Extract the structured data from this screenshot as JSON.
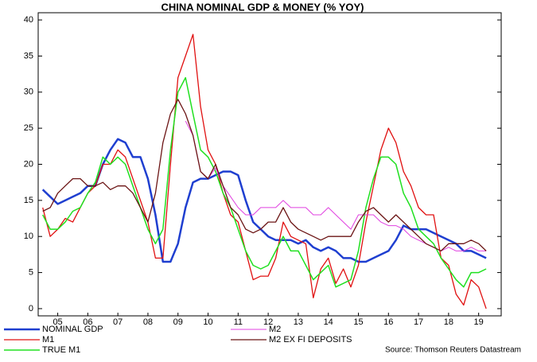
{
  "chart_data": {
    "type": "line",
    "title": "CHINA NOMINAL GDP & MONEY (% YOY)",
    "source": "Source: Thomson Reuters Datastream",
    "x": [
      2005,
      2005.25,
      2005.5,
      2005.75,
      2006,
      2006.25,
      2006.5,
      2006.75,
      2007,
      2007.25,
      2007.5,
      2007.75,
      2008,
      2008.25,
      2008.5,
      2008.75,
      2009,
      2009.25,
      2009.5,
      2009.75,
      2010,
      2010.25,
      2010.5,
      2010.75,
      2011,
      2011.25,
      2011.5,
      2011.75,
      2012,
      2012.25,
      2012.5,
      2012.75,
      2013,
      2013.25,
      2013.5,
      2013.75,
      2014,
      2014.25,
      2014.5,
      2014.75,
      2015,
      2015.25,
      2015.5,
      2015.75,
      2016,
      2016.25,
      2016.5,
      2016.75,
      2017,
      2017.25,
      2017.5,
      2017.75,
      2018,
      2018.25,
      2018.5,
      2018.75,
      2019,
      2019.25,
      2019.5,
      2019.75
    ],
    "xlim": [
      2004.85,
      2020.25
    ],
    "xticks": [
      {
        "value": 2005.5,
        "label": "05"
      },
      {
        "value": 2006.5,
        "label": "06"
      },
      {
        "value": 2007.5,
        "label": "07"
      },
      {
        "value": 2008.5,
        "label": "08"
      },
      {
        "value": 2009.5,
        "label": "09"
      },
      {
        "value": 2010.5,
        "label": "10"
      },
      {
        "value": 2011.5,
        "label": "11"
      },
      {
        "value": 2012.5,
        "label": "12"
      },
      {
        "value": 2013.5,
        "label": "13"
      },
      {
        "value": 2014.5,
        "label": "14"
      },
      {
        "value": 2015.5,
        "label": "15"
      },
      {
        "value": 2016.5,
        "label": "16"
      },
      {
        "value": 2017.5,
        "label": "17"
      },
      {
        "value": 2018.5,
        "label": "18"
      },
      {
        "value": 2019.5,
        "label": "19"
      }
    ],
    "ylim": [
      -1,
      41
    ],
    "yticks": [
      0,
      5,
      10,
      15,
      20,
      25,
      30,
      35,
      40
    ],
    "series": [
      {
        "name": "NOMINAL GDP",
        "color": "#1f3fd0",
        "width": 2.5,
        "values": [
          16.5,
          15.5,
          14.5,
          15,
          15.5,
          16,
          17,
          17,
          20,
          22,
          23.5,
          23,
          21,
          21,
          18,
          13,
          6.5,
          6.5,
          9,
          14,
          17.5,
          18,
          18,
          18.5,
          19,
          19,
          18.5,
          15,
          12,
          11,
          10,
          9.5,
          9.5,
          9.5,
          9,
          9.5,
          8.5,
          8,
          8.5,
          8,
          7,
          7,
          6.5,
          6.5,
          7,
          7.5,
          8,
          9.5,
          11.5,
          11,
          11,
          11,
          10.5,
          10,
          9.5,
          9,
          8,
          8,
          7.5,
          7
        ]
      },
      {
        "name": "M1",
        "color": "#e01010",
        "width": 1.3,
        "values": [
          14,
          10,
          11,
          12.5,
          12,
          14,
          16,
          17,
          20,
          20,
          22,
          21,
          18,
          15,
          12,
          7,
          7,
          20,
          32,
          35,
          38,
          28,
          22,
          20,
          16,
          13,
          12,
          8,
          4,
          4.5,
          4.5,
          7,
          12,
          10,
          9.5,
          9,
          1.5,
          5.5,
          7,
          3.5,
          5.5,
          3,
          6,
          12,
          17,
          22,
          25,
          23,
          19,
          17,
          14,
          13,
          13,
          7,
          6,
          2,
          0.5,
          4,
          3,
          0
        ]
      },
      {
        "name": "TRUE M1",
        "color": "#20e020",
        "width": 1.5,
        "values": [
          13,
          11,
          11,
          12,
          13.5,
          14,
          16,
          17.5,
          21,
          20,
          21,
          20,
          17,
          14,
          11,
          9,
          11,
          22,
          30,
          32,
          27,
          22,
          21,
          19,
          16,
          14,
          11,
          8,
          6,
          5.5,
          6,
          8,
          10,
          8,
          8,
          6,
          4,
          5,
          6,
          3,
          3.5,
          4,
          8,
          14,
          18,
          21,
          21,
          20,
          16,
          14,
          11,
          10,
          9,
          7,
          5.5,
          4,
          3,
          5,
          5,
          5.5
        ]
      },
      {
        "name": "M2",
        "color": "#e040e0",
        "width": 1,
        "values": [
          null,
          null,
          null,
          null,
          null,
          null,
          null,
          null,
          null,
          null,
          null,
          null,
          null,
          null,
          null,
          null,
          null,
          null,
          null,
          26,
          24,
          19,
          18,
          19.5,
          17,
          15.5,
          14,
          13,
          13,
          14,
          14,
          14,
          15,
          14,
          14,
          14,
          13,
          13,
          14,
          13,
          12,
          11,
          13,
          13,
          13,
          12,
          11.5,
          11.5,
          11,
          10,
          9.5,
          9,
          8.5,
          8,
          8.5,
          8,
          8,
          8.5,
          8,
          8
        ]
      },
      {
        "name": "M2 EX FI DEPOSITS",
        "color": "#6b1414",
        "width": 1.3,
        "values": [
          13.5,
          14,
          16,
          17,
          18,
          18,
          17,
          17,
          17.5,
          16.5,
          17,
          17,
          16,
          14,
          12,
          16,
          23,
          27,
          29,
          27,
          24,
          19,
          18,
          20,
          17,
          14,
          13,
          11,
          10.5,
          11,
          12,
          12,
          14,
          12,
          11,
          10.5,
          10,
          9.5,
          10,
          10,
          10,
          10,
          12,
          13.5,
          14,
          13,
          12,
          13,
          12,
          11,
          10,
          9,
          8.5,
          8,
          9,
          9,
          9,
          9.5,
          9,
          8
        ]
      }
    ]
  }
}
